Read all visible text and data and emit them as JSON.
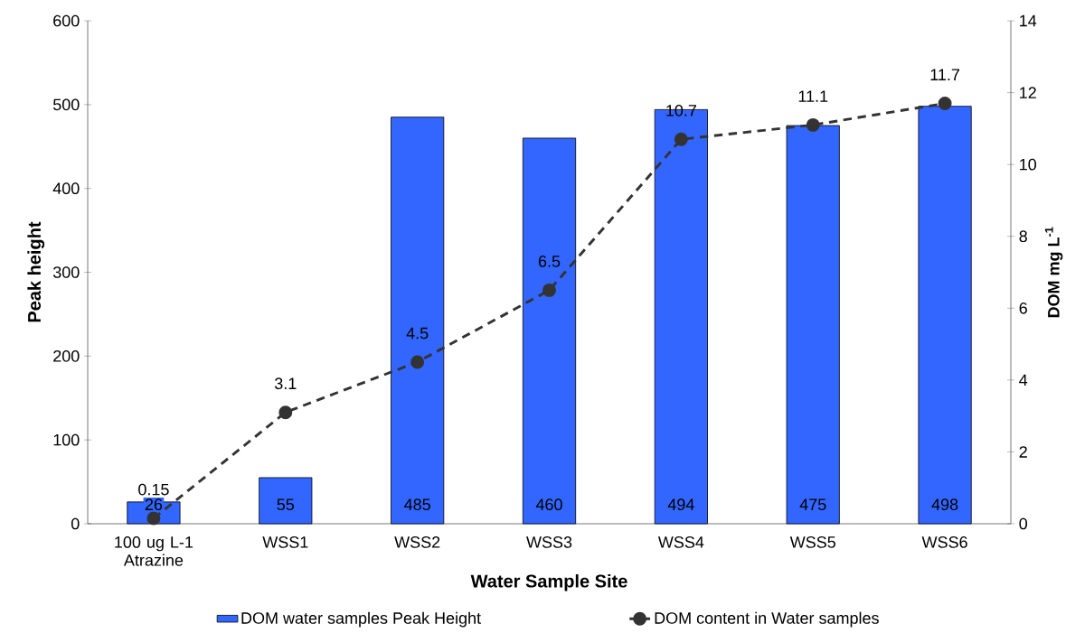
{
  "chart_data": {
    "type": "bar",
    "xlabel": "Water Sample Site",
    "ylabel": "Peak height",
    "y2label": "DOM mg L$^{-1}$",
    "categories": [
      "100 ug L-1 Atrazine",
      "WSS1",
      "WSS2",
      "WSS3",
      "WSS4",
      "WSS5",
      "WSS6"
    ],
    "series": [
      {
        "name": "DOM water samples Peak Height",
        "color": "#3366ff",
        "values": [
          26,
          55,
          485,
          460,
          494,
          475,
          498
        ]
      },
      {
        "name": "DOM content in Water samples",
        "type": "line",
        "axis": "y2",
        "color": "#333333",
        "values": [
          0.15,
          3.1,
          4.5,
          6.5,
          10.7,
          11.1,
          11.7
        ]
      }
    ],
    "ylim": [
      0,
      600
    ],
    "yticks": [
      0,
      100,
      200,
      300,
      400,
      500,
      600
    ],
    "y2lim": [
      0,
      14
    ],
    "y2ticks": [
      0,
      2,
      4,
      6,
      8,
      10,
      12,
      14
    ],
    "data_labels": true,
    "legend": "bottom",
    "marker": "circle",
    "line_style": "dashed"
  }
}
